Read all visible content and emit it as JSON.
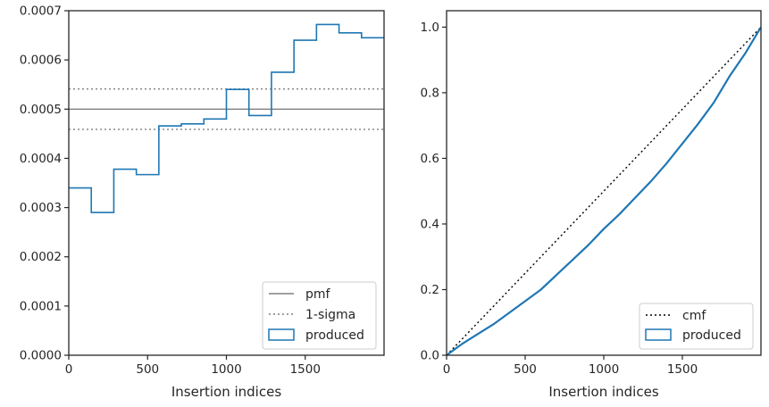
{
  "chart_data": [
    {
      "type": "step",
      "xlabel": "Insertion indices",
      "ylabel": "",
      "xlim": [
        0,
        2000
      ],
      "ylim": [
        0,
        0.0007
      ],
      "xticks": [
        0,
        500,
        1000,
        1500
      ],
      "yticks": [
        0.0,
        0.0001,
        0.0002,
        0.0003,
        0.0004,
        0.0005,
        0.0006,
        0.0007
      ],
      "ytick_labels": [
        "0.0000",
        "0.0001",
        "0.0002",
        "0.0003",
        "0.0004",
        "0.0005",
        "0.0006",
        "0.0007"
      ],
      "bin_edges": [
        0,
        142.9,
        285.7,
        428.6,
        571.4,
        714.3,
        857.1,
        1000,
        1142.9,
        1285.7,
        1428.6,
        1571.4,
        1714.3,
        1857.1,
        2000
      ],
      "series": [
        {
          "name": "produced",
          "values": [
            0.00034,
            0.00029,
            0.000378,
            0.000367,
            0.000466,
            0.00047,
            0.00048,
            0.00054,
            0.000487,
            0.000575,
            0.00064,
            0.000672,
            0.000655,
            0.000645
          ],
          "color": "#1f77b4"
        }
      ],
      "reference_lines": [
        {
          "name": "pmf",
          "value": 0.0005,
          "style": "solid",
          "color": "#808080"
        },
        {
          "name": "1-sigma",
          "value": 0.000541,
          "style": "dotted",
          "color": "#808080"
        },
        {
          "value": 0.000459,
          "style": "dotted",
          "color": "#808080"
        }
      ],
      "legend": {
        "placement": "lower-right",
        "entries": [
          "pmf",
          "1-sigma",
          "produced"
        ]
      }
    },
    {
      "type": "line",
      "xlabel": "Insertion indices",
      "ylabel": "",
      "xlim": [
        0,
        2000
      ],
      "ylim": [
        0,
        1.05
      ],
      "xticks": [
        0,
        500,
        1000,
        1500
      ],
      "yticks": [
        0.0,
        0.2,
        0.4,
        0.6,
        0.8,
        1.0
      ],
      "ytick_labels": [
        "0.0",
        "0.2",
        "0.4",
        "0.6",
        "0.8",
        "1.0"
      ],
      "series": [
        {
          "name": "cmf",
          "x": [
            0,
            2000
          ],
          "y": [
            0,
            1
          ],
          "style": "dotted",
          "color": "#000000"
        },
        {
          "name": "produced",
          "x": [
            0,
            100,
            200,
            300,
            400,
            500,
            600,
            700,
            800,
            900,
            1000,
            1100,
            1200,
            1300,
            1400,
            1500,
            1600,
            1700,
            1800,
            1900,
            2000
          ],
          "y": [
            0,
            0.035,
            0.065,
            0.095,
            0.13,
            0.165,
            0.2,
            0.245,
            0.29,
            0.335,
            0.385,
            0.43,
            0.48,
            0.53,
            0.585,
            0.645,
            0.705,
            0.77,
            0.85,
            0.92,
            1.0
          ],
          "style": "solid",
          "color": "#1f77b4"
        }
      ],
      "legend": {
        "placement": "lower-right",
        "entries": [
          "cmf",
          "produced"
        ]
      }
    }
  ]
}
